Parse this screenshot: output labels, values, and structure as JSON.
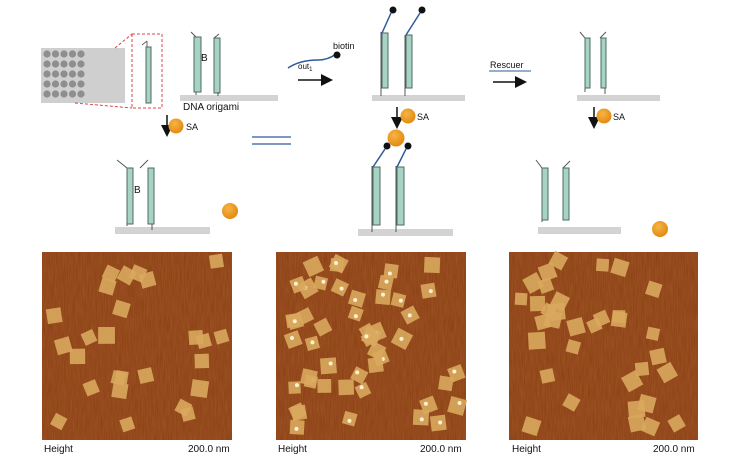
{
  "labels": {
    "dna_origami": "DNA origami",
    "strand_b": "B",
    "biotin": "biotin",
    "out": "out",
    "out_sub": "1",
    "sa": "SA",
    "rescuer": "Rescuer"
  },
  "panels": [
    {
      "caption": "Height",
      "scale": "200.0 nm"
    },
    {
      "caption": "Height",
      "scale": "200.0 nm"
    },
    {
      "caption": "Height",
      "scale": "200.0 nm"
    }
  ],
  "colors": {
    "strand_fill": "#a6d3c4",
    "strand_edge": "#4d6b60",
    "surface": "#d3d3d3",
    "streptavidin": "#e8961c",
    "biotin_linker": "#2f5b9a",
    "afm_background": "#8a3d12",
    "afm_tile": "#d9a85e"
  },
  "icons": [
    "arrow-down-icon",
    "arrow-right-icon",
    "equals-icon",
    "streptavidin-sphere-icon",
    "biotin-dot-icon"
  ]
}
